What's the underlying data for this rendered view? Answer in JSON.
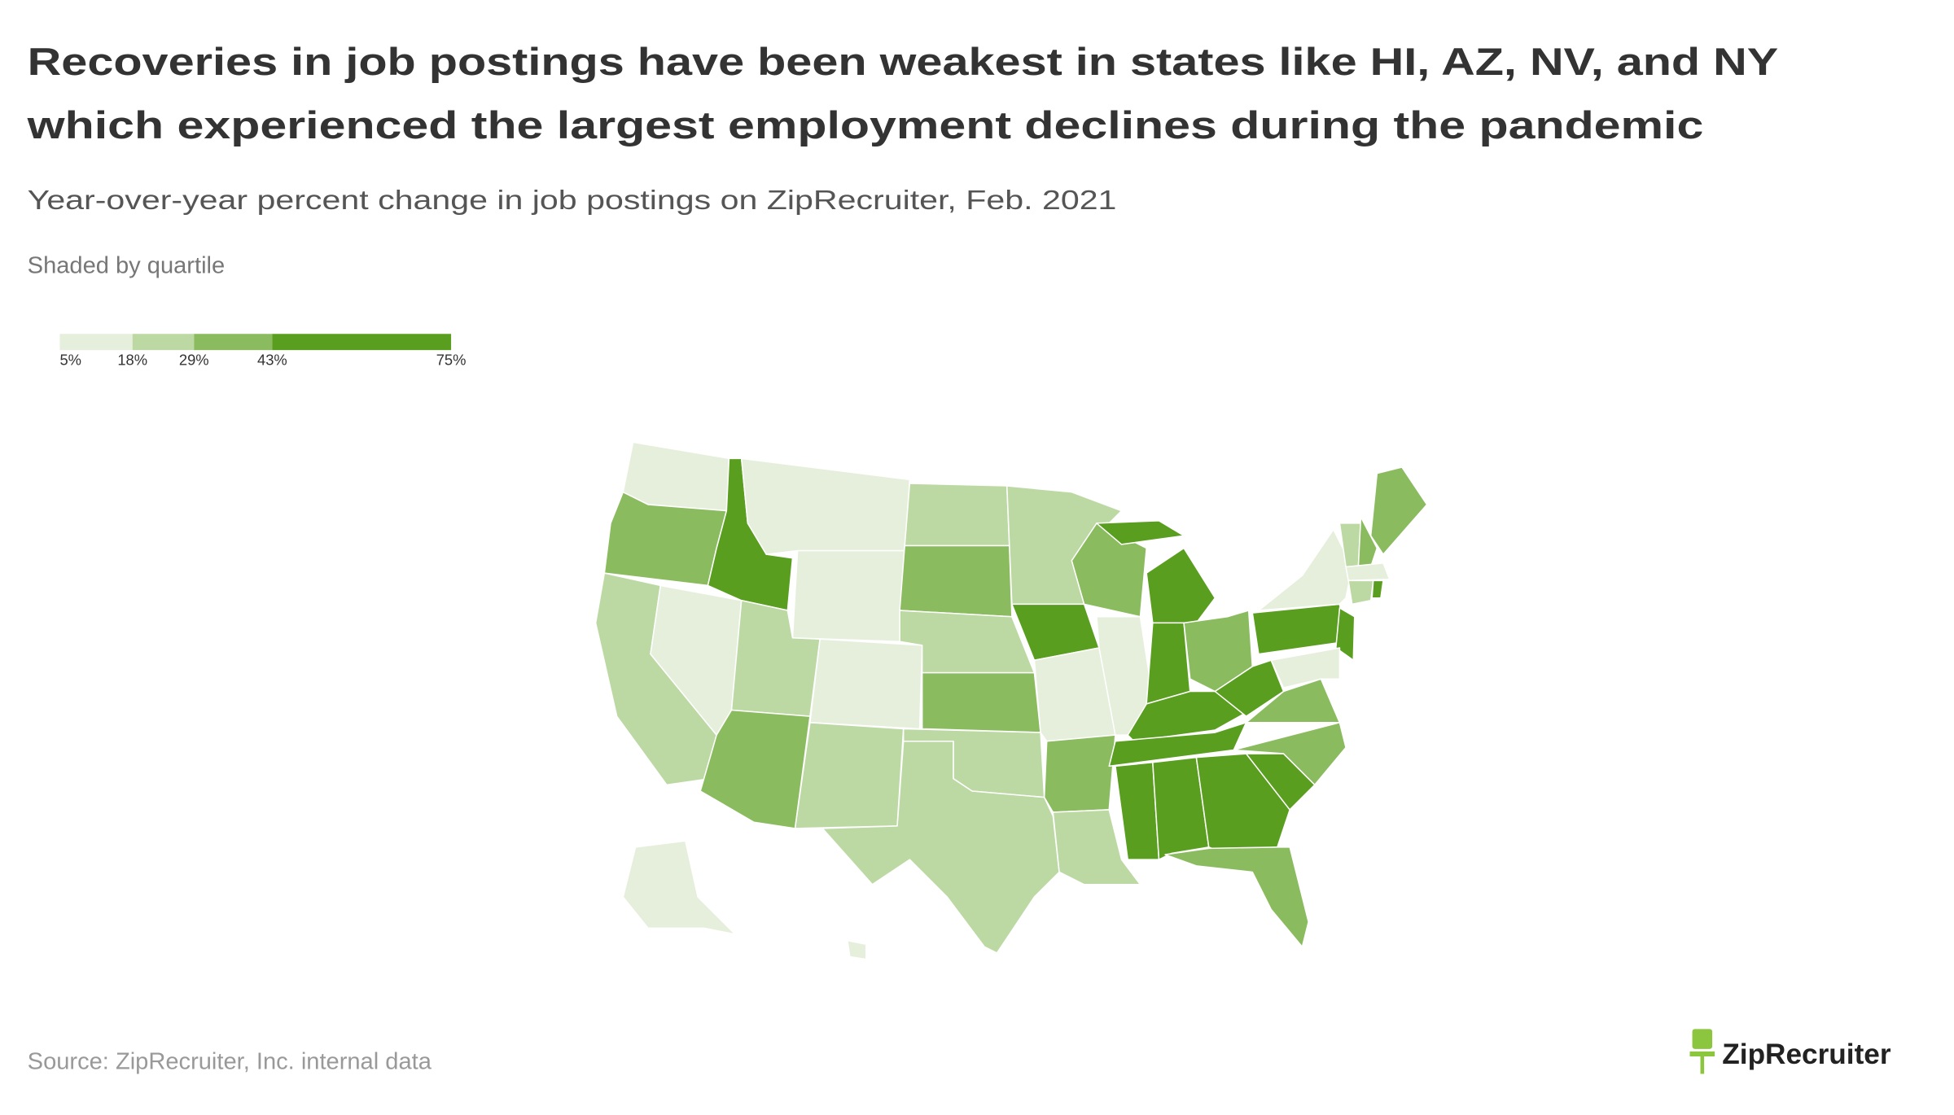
{
  "chart_data": {
    "type": "choropleth",
    "title": [
      "Recoveries in job postings have been weakest in states like HI, AZ, NV, and NY",
      "which experienced the largest employment declines during the pandemic"
    ],
    "subtitle": "Year-over-year percent change in job postings on ZipRecruiter, Feb. 2021",
    "note": "Shaded by quartile",
    "legend": {
      "xlim": [
        5,
        75
      ],
      "ticks": [
        {
          "value": 5,
          "label": "5%"
        },
        {
          "value": 18,
          "label": "18%"
        },
        {
          "value": 29,
          "label": "29%"
        },
        {
          "value": 43,
          "label": "43%"
        },
        {
          "value": 75,
          "label": "75%"
        }
      ],
      "colors": [
        "#e6efdc",
        "#bcd9a3",
        "#8bbb5f",
        "#5a9e1f"
      ]
    },
    "source": "Source: ZipRecruiter, Inc. internal data",
    "brand": "ZipRecruiter"
  }
}
